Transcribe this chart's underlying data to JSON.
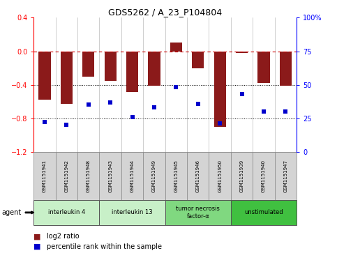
{
  "title": "GDS5262 / A_23_P104804",
  "samples": [
    "GSM1151941",
    "GSM1151942",
    "GSM1151948",
    "GSM1151943",
    "GSM1151944",
    "GSM1151949",
    "GSM1151945",
    "GSM1151946",
    "GSM1151950",
    "GSM1151939",
    "GSM1151940",
    "GSM1151947"
  ],
  "log2_ratio": [
    -0.58,
    -0.63,
    -0.3,
    -0.35,
    -0.49,
    -0.41,
    0.1,
    -0.2,
    -0.9,
    -0.02,
    -0.38,
    -0.41
  ],
  "percentile": [
    22,
    20,
    35,
    37,
    26,
    33,
    48,
    36,
    21,
    43,
    30,
    30
  ],
  "groups": [
    {
      "label": "interleukin 4",
      "start": 0,
      "end": 3,
      "color": "#c8f0c8"
    },
    {
      "label": "interleukin 13",
      "start": 3,
      "end": 6,
      "color": "#c8f0c8"
    },
    {
      "label": "tumor necrosis\nfactor-α",
      "start": 6,
      "end": 9,
      "color": "#80d880"
    },
    {
      "label": "unstimulated",
      "start": 9,
      "end": 12,
      "color": "#40c040"
    }
  ],
  "bar_color": "#8B1A1A",
  "dot_color": "#0000CC",
  "ref_line_color": "#CC0000",
  "ylim_left": [
    -1.2,
    0.4
  ],
  "ylim_right": [
    0,
    100
  ],
  "yticks_left": [
    -1.2,
    -0.8,
    -0.4,
    0.0,
    0.4
  ],
  "yticks_right": [
    0,
    25,
    50,
    75,
    100
  ],
  "bg_color": "#ffffff",
  "plot_bg": "#ffffff",
  "grid_color": "#000000"
}
